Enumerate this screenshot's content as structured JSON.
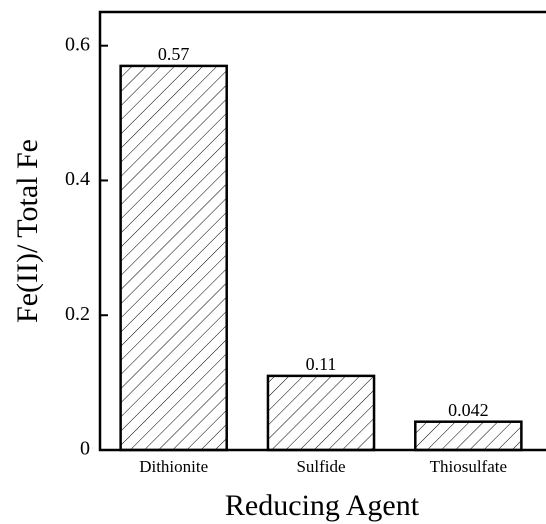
{
  "chart_data": {
    "type": "bar",
    "ylabel": "Fe(II)/ Total Fe",
    "xlabel": "Reducing Agent",
    "categories": [
      "Dithionite",
      "Sulfide",
      "Thiosulfate"
    ],
    "values": [
      0.57,
      0.11,
      0.042
    ],
    "color": "#000000",
    "hatch": "diagonal",
    "ylim": [
      0,
      0.65
    ],
    "yticks": [
      0,
      0.2,
      0.4,
      0.6
    ]
  }
}
